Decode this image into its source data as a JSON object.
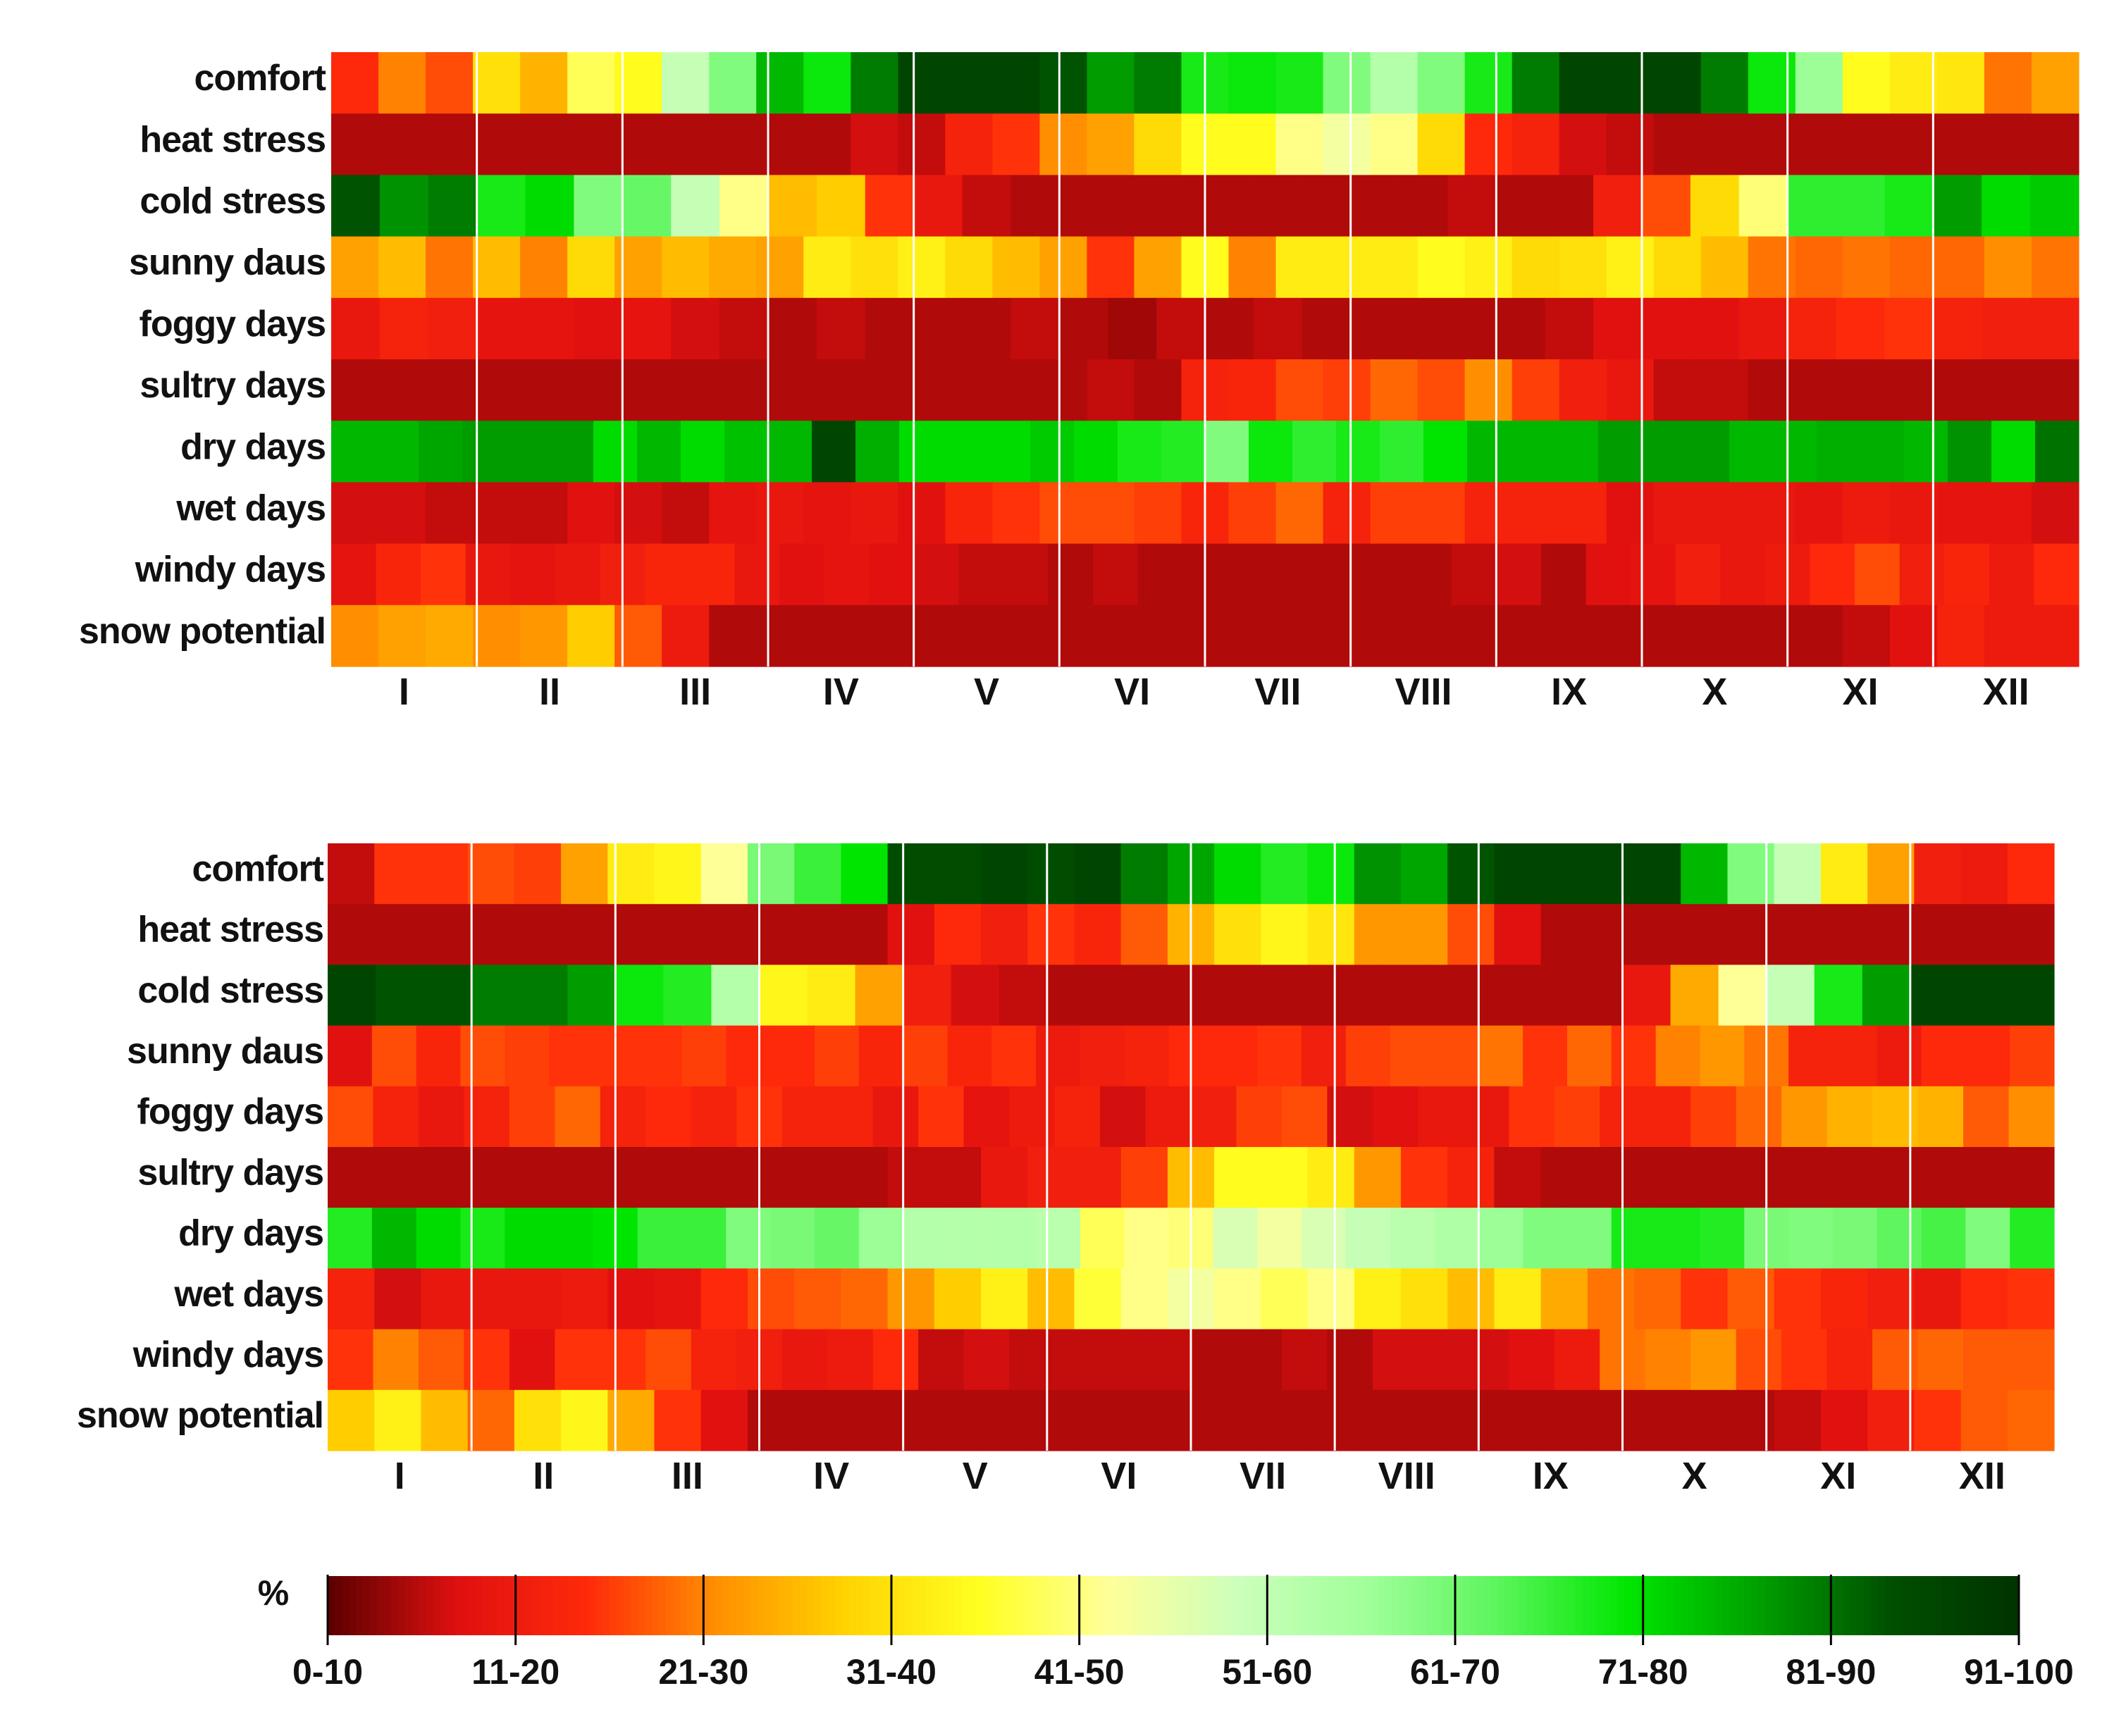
{
  "chart_data": [
    {
      "type": "heatmap",
      "title": "",
      "rows": [
        "comfort",
        "heat stress",
        "cold stress",
        "sunny daus",
        "foggy days",
        "sultry days",
        "dry days",
        "wet days",
        "windy days",
        "snow potential"
      ],
      "months": [
        "I",
        "II",
        "III",
        "IV",
        "V",
        "VI",
        "VII",
        "VIII",
        "IX",
        "X",
        "XI",
        "XII"
      ],
      "values": [
        [
          15,
          22,
          18,
          33,
          27,
          42,
          38,
          55,
          65,
          82,
          76,
          88,
          95,
          95,
          95,
          92,
          85,
          88,
          75,
          76,
          75,
          65,
          58,
          65,
          75,
          88,
          95,
          95,
          95,
          88,
          76,
          62,
          38,
          35,
          34,
          21,
          25
        ],
        [
          5,
          5,
          5,
          5,
          5,
          5,
          5,
          5,
          5,
          5,
          5,
          7,
          6,
          13,
          16,
          23,
          25,
          32,
          38,
          38,
          45,
          48,
          45,
          32,
          15,
          13,
          7,
          6,
          5,
          5,
          5,
          5,
          5,
          5,
          5,
          5,
          5
        ],
        [
          92,
          86,
          88,
          75,
          78,
          65,
          68,
          55,
          45,
          28,
          30,
          16,
          10,
          6,
          5,
          5,
          5,
          5,
          5,
          5,
          5,
          5,
          5,
          6,
          5,
          5,
          12,
          18,
          32,
          44,
          73,
          73,
          75,
          85,
          78,
          80
        ],
        [
          25,
          28,
          21,
          28,
          22,
          32,
          25,
          28,
          26,
          25,
          35,
          33,
          36,
          32,
          28,
          25,
          16,
          25,
          38,
          22,
          35,
          35,
          35,
          38,
          36,
          32,
          33,
          36,
          32,
          28,
          21,
          20,
          21,
          20,
          20,
          23,
          21
        ],
        [
          10,
          13,
          12,
          9,
          9,
          8,
          9,
          7,
          6,
          5,
          6,
          5,
          5,
          5,
          6,
          5,
          4,
          6,
          5,
          6,
          5,
          5,
          5,
          5,
          5,
          6,
          8,
          8,
          8,
          10,
          13,
          15,
          16,
          13,
          12,
          12
        ],
        [
          5,
          5,
          5,
          5,
          5,
          5,
          5,
          5,
          5,
          5,
          5,
          5,
          5,
          5,
          5,
          5,
          6,
          5,
          13,
          14,
          18,
          17,
          20,
          18,
          23,
          17,
          12,
          10,
          6,
          6,
          5,
          5,
          5,
          5,
          5,
          5,
          5
        ],
        [
          82,
          82,
          84,
          85,
          85,
          85,
          78,
          82,
          78,
          81,
          82,
          95,
          83,
          78,
          78,
          78,
          80,
          78,
          75,
          74,
          65,
          76,
          73,
          75,
          73,
          77,
          82,
          82,
          82,
          85,
          85,
          85,
          82,
          82,
          83,
          83,
          82,
          86,
          78,
          89
        ],
        [
          7,
          7,
          6,
          6,
          6,
          8,
          7,
          6,
          9,
          10,
          9,
          10,
          8,
          14,
          16,
          18,
          18,
          17,
          14,
          17,
          20,
          13,
          17,
          17,
          13,
          13,
          13,
          8,
          10,
          10,
          10,
          9,
          11,
          10,
          9,
          9,
          7
        ],
        [
          9,
          14,
          16,
          10,
          9,
          10,
          12,
          14,
          14,
          10,
          8,
          9,
          8,
          7,
          6,
          6,
          5,
          6,
          5,
          5,
          5,
          5,
          5,
          5,
          5,
          6,
          7,
          5,
          8,
          9,
          12,
          10,
          11,
          15,
          18,
          12,
          14,
          11,
          15
        ],
        [
          23,
          25,
          26,
          23,
          24,
          30,
          19,
          11,
          5,
          5,
          5,
          5,
          5,
          5,
          5,
          5,
          5,
          5,
          5,
          5,
          5,
          5,
          5,
          5,
          5,
          5,
          5,
          5,
          5,
          5,
          5,
          5,
          6,
          8,
          13,
          11,
          11
        ]
      ]
    },
    {
      "type": "heatmap",
      "title": "",
      "rows": [
        "comfort",
        "heat stress",
        "cold stress",
        "sunny daus",
        "foggy days",
        "sultry days",
        "dry days",
        "wet days",
        "windy days",
        "snow potential"
      ],
      "months": [
        "I",
        "II",
        "III",
        "IV",
        "V",
        "VI",
        "VII",
        "VIII",
        "IX",
        "X",
        "XI",
        "XII"
      ],
      "values": [
        [
          6,
          16,
          16,
          18,
          17,
          25,
          35,
          37,
          46,
          66,
          72,
          77,
          93,
          93,
          95,
          93,
          95,
          88,
          84,
          78,
          74,
          76,
          86,
          84,
          92,
          95,
          95,
          95,
          95,
          82,
          65,
          55,
          35,
          25,
          12,
          11,
          15
        ],
        [
          5,
          5,
          5,
          5,
          5,
          5,
          5,
          5,
          5,
          5,
          5,
          5,
          8,
          15,
          12,
          16,
          14,
          19,
          27,
          33,
          37,
          34,
          24,
          24,
          18,
          8,
          5,
          5,
          5,
          5,
          5,
          5,
          5,
          5,
          5,
          5,
          5
        ],
        [
          95,
          92,
          92,
          88,
          88,
          85,
          76,
          74,
          58,
          37,
          35,
          25,
          12,
          7,
          6,
          5,
          5,
          5,
          5,
          5,
          5,
          5,
          5,
          5,
          5,
          5,
          5,
          10,
          26,
          46,
          55,
          75,
          85,
          95,
          95,
          95
        ],
        [
          8,
          18,
          14,
          18,
          17,
          16,
          16,
          16,
          17,
          15,
          15,
          17,
          14,
          17,
          14,
          16,
          11,
          12,
          13,
          15,
          15,
          16,
          12,
          17,
          18,
          18,
          21,
          16,
          20,
          16,
          22,
          24,
          21,
          13,
          13,
          11,
          15,
          15,
          17
        ],
        [
          18,
          13,
          10,
          13,
          17,
          20,
          13,
          15,
          13,
          16,
          13,
          13,
          10,
          16,
          9,
          11,
          13,
          7,
          11,
          12,
          17,
          18,
          7,
          8,
          10,
          10,
          16,
          17,
          13,
          13,
          17,
          20,
          24,
          27,
          28,
          27,
          19,
          23
        ],
        [
          5,
          5,
          5,
          5,
          5,
          5,
          5,
          5,
          5,
          5,
          5,
          5,
          6,
          6,
          10,
          12,
          12,
          17,
          28,
          38,
          38,
          35,
          24,
          16,
          13,
          6,
          5,
          5,
          5,
          5,
          5,
          5,
          5,
          5,
          5,
          5,
          5
        ],
        [
          74,
          82,
          78,
          75,
          78,
          78,
          77,
          72,
          72,
          65,
          66,
          68,
          62,
          58,
          58,
          58,
          57,
          42,
          45,
          44,
          52,
          48,
          52,
          55,
          57,
          59,
          62,
          65,
          65,
          75,
          75,
          74,
          66,
          65,
          66,
          69,
          71,
          65,
          74
        ],
        [
          13,
          7,
          10,
          10,
          10,
          11,
          8,
          9,
          15,
          18,
          19,
          20,
          24,
          30,
          36,
          28,
          40,
          45,
          48,
          45,
          42,
          45,
          36,
          33,
          28,
          35,
          26,
          21,
          20,
          16,
          19,
          16,
          14,
          12,
          10,
          15,
          16
        ],
        [
          16,
          22,
          19,
          16,
          8,
          16,
          16,
          18,
          13,
          12,
          10,
          11,
          15,
          6,
          7,
          6,
          6,
          6,
          6,
          5,
          5,
          6,
          5,
          7,
          7,
          7,
          8,
          11,
          21,
          22,
          24,
          18,
          16,
          13,
          19,
          20,
          19,
          19
        ],
        [
          30,
          36,
          28,
          20,
          33,
          37,
          26,
          16,
          8,
          5,
          5,
          5,
          5,
          5,
          5,
          5,
          5,
          5,
          5,
          5,
          5,
          5,
          5,
          5,
          5,
          5,
          5,
          5,
          5,
          5,
          5,
          6,
          8,
          12,
          16,
          19,
          20
        ]
      ]
    }
  ],
  "legend": {
    "unit": "%",
    "bins": [
      "0-10",
      "11-20",
      "21-30",
      "31-40",
      "41-50",
      "51-60",
      "61-70",
      "71-80",
      "81-90",
      "91-100"
    ]
  },
  "colors": {
    "stops": [
      "#5a0000",
      "#e01010",
      "#ff2a0a",
      "#ff9000",
      "#ffd400",
      "#ffff20",
      "#ffff99",
      "#ccffbb",
      "#a0ff9a",
      "#5cf55c",
      "#00e600",
      "#00a000",
      "#005000",
      "#003300"
    ],
    "grid_line": "#ffffff",
    "text": "#111111"
  }
}
